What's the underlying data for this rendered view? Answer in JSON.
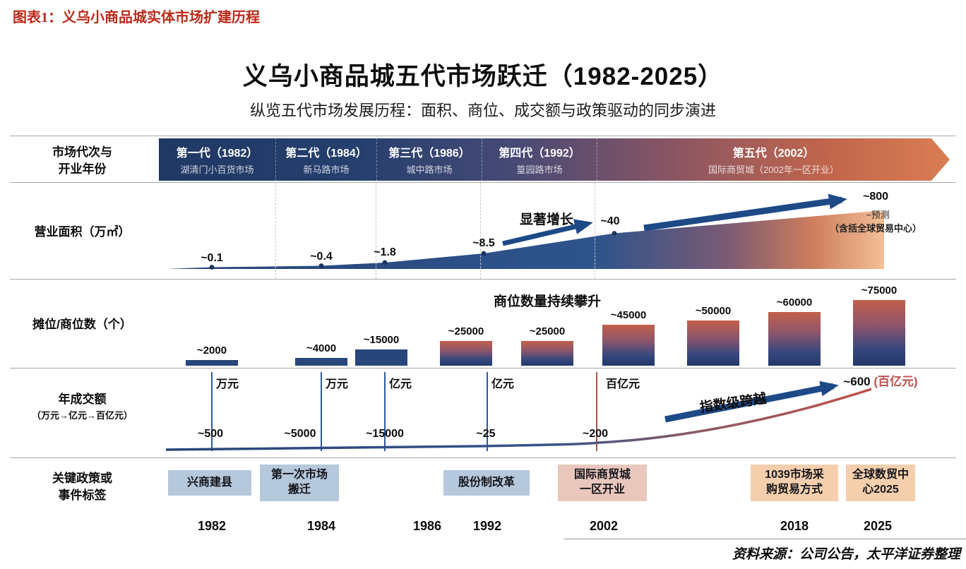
{
  "page": {
    "caption": "图表1：义乌小商品城实体市场扩建历程",
    "source": "资料来源：公司公告，太平洋证券整理"
  },
  "chart": {
    "title": "义乌小商品城五代市场跃迁（1982-2025）",
    "subtitle": "纵览五代市场发展历程：面积、商位、成交额与政策驱动的同步演进",
    "row_labels": {
      "generation_line1": "市场代次与",
      "generation_line2": "开业年份",
      "area": "营业面积（万㎡）",
      "stalls": "摊位/商位数（个）",
      "txn_line1": "年成交额",
      "txn_line2": "（万元→亿元→百亿元）",
      "events_line1": "关键政策或",
      "events_line2": "事件标签"
    }
  },
  "chart_data": {
    "type": "composite-timeline",
    "years_axis": [
      "1982",
      "1984",
      "1986",
      "1992",
      "2002",
      "2018",
      "2025"
    ],
    "generations": [
      {
        "name": "第一代（1982）",
        "market": "湖清门小百货市场"
      },
      {
        "name": "第二代（1984）",
        "market": "新马路市场"
      },
      {
        "name": "第三代（1986）",
        "market": "城中路市场"
      },
      {
        "name": "第四代（1992）",
        "market": "篁园路市场"
      },
      {
        "name": "第五代（2002）",
        "market": "国际商贸城（2002年一区开业）"
      }
    ],
    "area_series": {
      "label": "营业面积（万㎡）",
      "type": "area",
      "annotation": "显著增长",
      "forecast_note1": "~预测",
      "forecast_note2": "（含括全球贸易中心）",
      "points": [
        {
          "x": "1982",
          "value": 0.1,
          "label": "~0.1"
        },
        {
          "x": "1984",
          "value": 0.4,
          "label": "~0.4"
        },
        {
          "x": "1986",
          "value": 1.8,
          "label": "~1.8"
        },
        {
          "x": "1992",
          "value": 8.5,
          "label": "~8.5"
        },
        {
          "x": "2002",
          "value": 40,
          "label": "~40"
        },
        {
          "x": "2025",
          "value": 800,
          "label": "~800"
        }
      ]
    },
    "stalls_series": {
      "label": "摊位/商位数（个）",
      "type": "bar",
      "annotation": "商位数量持续攀升",
      "bars": [
        {
          "value": 2000,
          "label": "~2000"
        },
        {
          "value": 4000,
          "label": "~4000"
        },
        {
          "value": 15000,
          "label": "~15000"
        },
        {
          "value": 25000,
          "label": "~25000"
        },
        {
          "value": 25000,
          "label": "~25000"
        },
        {
          "value": 45000,
          "label": "~45000"
        },
        {
          "value": 50000,
          "label": "~50000"
        },
        {
          "value": 60000,
          "label": "~60000"
        },
        {
          "value": 75000,
          "label": "~75000"
        }
      ]
    },
    "txn_series": {
      "label": "年成交额（万元→亿元→百亿元）",
      "type": "line",
      "annotation": "指数级跨越",
      "units": [
        "万元",
        "万元",
        "亿元",
        "亿元",
        "百亿元"
      ],
      "values": [
        "~500",
        "~5000",
        "~15000",
        "~25",
        "~200"
      ],
      "final_value": "~600",
      "final_unit": "(百亿元)"
    },
    "events": [
      {
        "lines": [
          "兴商建县"
        ],
        "tone": "blue"
      },
      {
        "lines": [
          "第一次市场",
          "搬迁"
        ],
        "tone": "blue"
      },
      {
        "lines": [
          "股份制改革"
        ],
        "tone": "blue"
      },
      {
        "lines": [
          "国际商贸城",
          "一区开业"
        ],
        "tone": "pink"
      },
      {
        "lines": [
          "1039市场采",
          "购贸易方式"
        ],
        "tone": "orange"
      },
      {
        "lines": [
          "全球数贸中",
          "心2025"
        ],
        "tone": "orange"
      }
    ],
    "colors": {
      "band_start": "#203864",
      "band_end": "#d97e53",
      "arrow": "#1d4a87",
      "bar_top": "#c2604a",
      "bar_bottom": "#21386a",
      "event_blue": "#b5c8dc",
      "event_pink": "#e9c7bd",
      "event_orange": "#f5cfad",
      "caption_red": "#bd2a1a"
    }
  }
}
